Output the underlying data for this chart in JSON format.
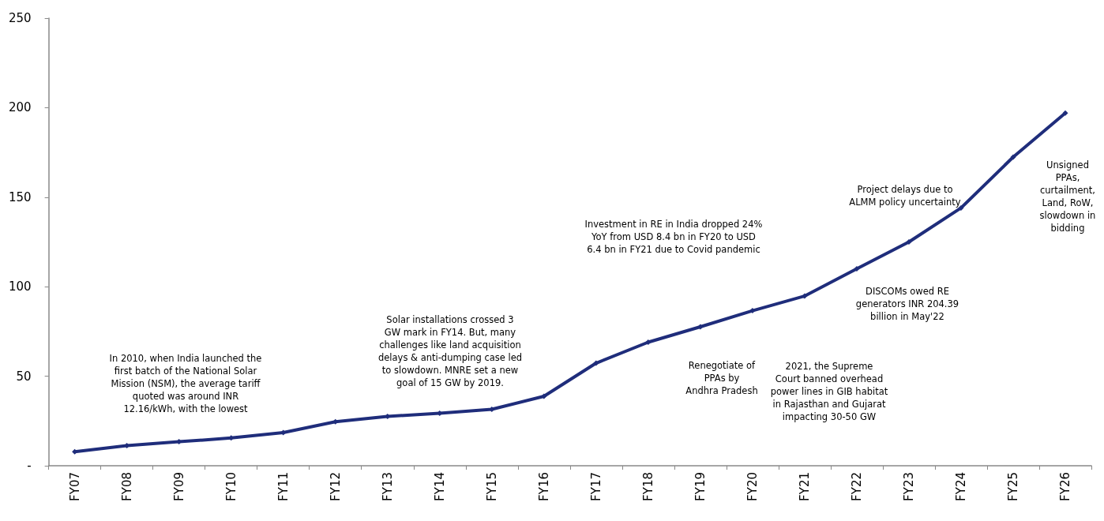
{
  "chart_data": {
    "type": "line",
    "categories": [
      "FY07",
      "FY08",
      "FY09",
      "FY10",
      "FY11",
      "FY12",
      "FY13",
      "FY14",
      "FY15",
      "FY16",
      "FY17",
      "FY18",
      "FY19",
      "FY20",
      "FY21",
      "FY22",
      "FY23",
      "FY24",
      "FY25",
      "FY26"
    ],
    "series": [
      {
        "color": "#1f2d7b",
        "values": [
          7.8,
          11.2,
          13.4,
          15.5,
          18.5,
          24.6,
          27.6,
          29.3,
          31.5,
          38.8,
          57.3,
          69,
          77.6,
          86.6,
          94.8,
          110,
          125,
          144,
          172.4,
          197
        ]
      }
    ],
    "ylim": [
      0,
      250
    ],
    "yticks": [
      {
        "value": 0,
        "label": "-"
      },
      50,
      100,
      150,
      200,
      250
    ],
    "grid": false,
    "marker": "diamond",
    "line_style": "solid",
    "annotations": [
      "In 2010, when India launched the\nfirst batch of the National Solar\nMission (NSM), the average tariff\nquoted was around INR\n12.16/kWh, with the lowest",
      "Solar installations crossed 3\nGW mark in FY14. But, many\nchallenges like land acquisition\ndelays & anti-dumping case led\nto slowdown. MNRE set a new\ngoal of 15 GW by 2019.",
      "Investment in RE in India dropped 24%\nYoY from USD 8.4 bn in FY20 to USD\n6.4 bn in FY21 due to Covid pandemic",
      "Renegotiate of\nPPAs by\nAndhra Pradesh",
      "2021, the Supreme\nCourt banned overhead\npower lines in GIB habitat\nin Rajasthan and Gujarat\nimpacting 30-50 GW",
      "DISCOMs owed RE\ngenerators INR 204.39\nbillion in May'22",
      "Project delays due to\nALMM policy uncertainty",
      "Unsigned\nPPAs,\ncurtailment,\nLand, RoW,\nslowdown in\nbidding"
    ]
  }
}
